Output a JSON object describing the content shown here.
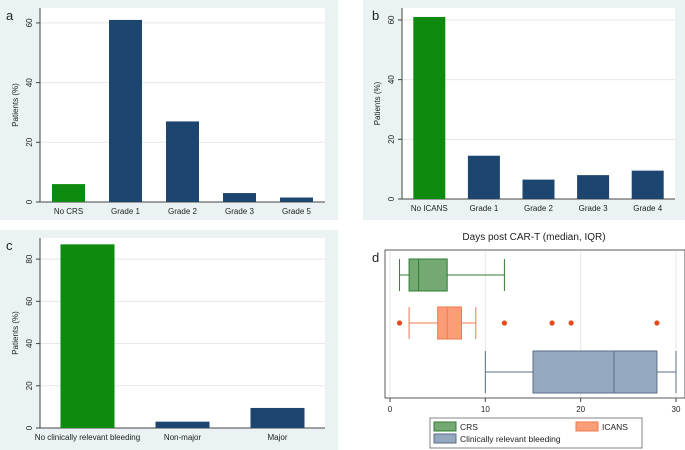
{
  "colors": {
    "panel_bg": "#eaf2f3",
    "plot_bg": "#ffffff",
    "gridline": "#e3e8ea",
    "axis": "#444444",
    "text": "#222222",
    "green": "#0e8a0e",
    "navy": "#1c4670",
    "crs_fill": "#74a974",
    "crs_edge": "#2f7d32",
    "icans_fill": "#fa9d78",
    "icans_edge": "#ee7a4d",
    "icans_outlier": "#e8491d",
    "bleed_fill": "#94a8bf",
    "bleed_edge": "#5a6f87"
  },
  "chart_data": [
    {
      "panel_label": "a",
      "type": "bar",
      "ylabel": "Patients (%)",
      "ylim": [
        0,
        65
      ],
      "yticks": [
        0,
        20,
        40,
        60
      ],
      "categories": [
        "No CRS",
        "Grade 1",
        "Grade 2",
        "Grade 3",
        "Grade 5"
      ],
      "values": [
        6,
        61,
        27,
        3,
        1.5
      ],
      "bar_colors": [
        "green",
        "navy",
        "navy",
        "navy",
        "navy"
      ]
    },
    {
      "panel_label": "b",
      "type": "bar",
      "ylabel": "Patients (%)",
      "ylim": [
        0,
        64
      ],
      "yticks": [
        0,
        20,
        40,
        60
      ],
      "categories": [
        "No ICANS",
        "Grade 1",
        "Grade 2",
        "Grade 3",
        "Grade 4"
      ],
      "values": [
        61,
        14.5,
        6.5,
        8,
        9.5
      ],
      "bar_colors": [
        "green",
        "navy",
        "navy",
        "navy",
        "navy"
      ]
    },
    {
      "panel_label": "c",
      "type": "bar",
      "ylabel": "Patients (%)",
      "ylim": [
        0,
        90
      ],
      "yticks": [
        0,
        20,
        40,
        60,
        80
      ],
      "categories": [
        "No clinically relevant bleeding",
        "Non-major",
        "Major"
      ],
      "values": [
        87,
        3,
        9.5
      ],
      "bar_colors": [
        "green",
        "navy",
        "navy"
      ]
    },
    {
      "panel_label": "d",
      "type": "box",
      "title": "Days post CAR-T (median, IQR)",
      "xlim": [
        0,
        30
      ],
      "xticks": [
        0,
        10,
        20,
        30
      ],
      "series": [
        {
          "name": "CRS",
          "whisker_low": 1,
          "q1": 2,
          "median": 3,
          "q3": 6,
          "whisker_high": 12,
          "outliers": [],
          "fill": "crs_fill",
          "edge": "crs_edge"
        },
        {
          "name": "ICANS",
          "whisker_low": 2,
          "q1": 5,
          "median": 6,
          "q3": 7.5,
          "whisker_high": 9,
          "outliers": [
            1,
            12,
            17,
            19,
            28
          ],
          "fill": "icans_fill",
          "edge": "icans_edge"
        },
        {
          "name": "Clinically relevant bleeding",
          "whisker_low": 10,
          "q1": 15,
          "median": 23.5,
          "q3": 28,
          "whisker_high": 30,
          "outliers": [],
          "fill": "bleed_fill",
          "edge": "bleed_edge"
        }
      ],
      "legend": [
        "CRS",
        "ICANS",
        "Clinically relevant bleeding"
      ]
    }
  ]
}
